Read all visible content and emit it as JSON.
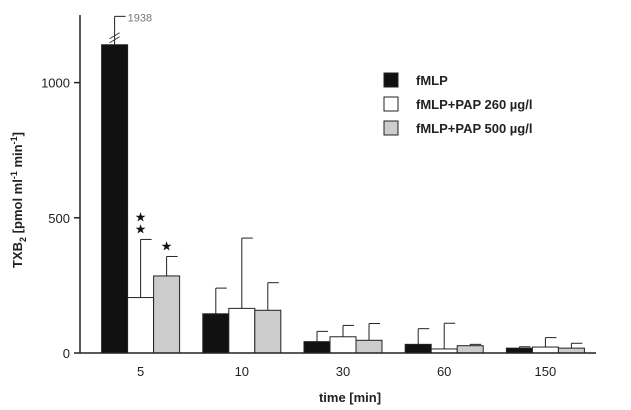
{
  "chart_data": {
    "type": "bar",
    "xlabel": "time [min]",
    "ylabel_main": "TXB",
    "ylabel_sub": "2",
    "ylabel_rest": " [pmol ml",
    "ylabel_sup1": "-1",
    "ylabel_mid": " min",
    "ylabel_sup2": "-1",
    "ylabel_end": "]",
    "ylim": [
      0,
      1250
    ],
    "yticks": [
      0,
      500,
      1000
    ],
    "ytick_labels": [
      "0",
      "500",
      "1000"
    ],
    "categories": [
      "5",
      "10",
      "30",
      "60",
      "150"
    ],
    "legend_position": "top-right",
    "series": [
      {
        "name": "fMLP",
        "color": "#111111",
        "values": [
          1938,
          145,
          42,
          32,
          18
        ],
        "errors": [
          0,
          95,
          38,
          58,
          5
        ]
      },
      {
        "name": "fMLP+PAP 260 µg/l",
        "color": "#ffffff",
        "values": [
          205,
          165,
          60,
          15,
          22
        ],
        "errors": [
          215,
          260,
          42,
          95,
          35
        ]
      },
      {
        "name": "fMLP+PAP 500 µg/l",
        "color": "#cccccc",
        "values": [
          285,
          158,
          47,
          27,
          18
        ],
        "errors": [
          72,
          102,
          62,
          5,
          18
        ]
      }
    ],
    "axis_break": {
      "label": "1938",
      "shown_at": 1140,
      "error_shown_to": 1245
    },
    "significance": [
      {
        "category": "5",
        "series": 1,
        "marks": [
          "★",
          "★"
        ]
      },
      {
        "category": "5",
        "series": 2,
        "marks": [
          "★"
        ]
      }
    ]
  }
}
